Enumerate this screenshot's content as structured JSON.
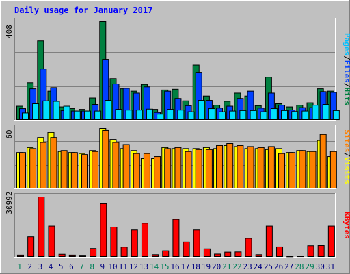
{
  "chart_data": {
    "type": "bar",
    "title": "Daily usage for January 2017",
    "categories": [
      "1",
      "2",
      "3",
      "4",
      "5",
      "6",
      "7",
      "8",
      "9",
      "10",
      "11",
      "12",
      "13",
      "14",
      "15",
      "16",
      "17",
      "18",
      "19",
      "20",
      "21",
      "22",
      "23",
      "24",
      "25",
      "26",
      "27",
      "28",
      "29",
      "30",
      "31"
    ],
    "weekend_days": [
      "1",
      "7",
      "8",
      "14",
      "15",
      "21",
      "22",
      "28",
      "29"
    ],
    "panels": [
      {
        "name": "hits_files_pages",
        "axis_max_label": "408",
        "ymax": 408,
        "series": [
          {
            "name": "Hits",
            "color": "#008040",
            "values": [
              58,
              155,
              328,
              120,
              55,
              48,
              45,
              92,
              408,
              172,
              130,
              120,
              148,
              45,
              125,
              128,
              80,
              228,
              100,
              62,
              78,
              112,
              100,
              60,
              178,
              68,
              55,
              62,
              72,
              130,
              120
            ]
          },
          {
            "name": "Files",
            "color": "#0040ff",
            "values": [
              48,
              130,
              212,
              135,
              40,
              38,
              38,
              65,
              252,
              150,
              132,
              112,
              138,
              32,
              120,
              90,
              60,
              198,
              82,
              50,
              58,
              90,
              120,
              50,
              112,
              62,
              42,
              52,
              52,
              118,
              115
            ]
          },
          {
            "name": "Pages",
            "color": "#00e0ff",
            "values": [
              30,
              68,
              80,
              78,
              58,
              38,
              38,
              38,
              82,
              45,
              42,
              42,
              46,
              25,
              45,
              42,
              35,
              82,
              48,
              35,
              38,
              40,
              40,
              35,
              48,
              40,
              36,
              38,
              62,
              65,
              40
            ]
          }
        ],
        "legend": [
          "Pages",
          "/",
          "Files",
          "/",
          "Hits"
        ],
        "legend_colors": [
          "#00c0ff",
          "#000000",
          "#0040ff",
          "#000000",
          "#008040"
        ]
      },
      {
        "name": "visits_sites",
        "axis_max_label": "60",
        "ymax": 60,
        "series": [
          {
            "name": "Visits",
            "color": "#ffff00",
            "values": [
              36,
              41,
              51,
              56,
              37,
              36,
              35,
              38,
              60,
              49,
              40,
              38,
              30,
              30,
              41,
              40,
              40,
              40,
              41,
              40,
              43,
              42,
              40,
              40,
              39,
              40,
              36,
              38,
              37,
              48,
              32
            ]
          },
          {
            "name": "Sites",
            "color": "#ff8000",
            "values": [
              36,
              40,
              46,
              51,
              38,
              36,
              34,
              37,
              58,
              46,
              44,
              35,
              35,
              32,
              40,
              41,
              37,
              39,
              39,
              43,
              45,
              43,
              42,
              41,
              42,
              35,
              36,
              38,
              37,
              54,
              37
            ]
          }
        ],
        "legend": [
          "Sites",
          "/",
          "Visits"
        ],
        "legend_colors": [
          "#ff8000",
          "#000000",
          "#ffff00"
        ]
      },
      {
        "name": "kbytes",
        "axis_max_label": "30992",
        "ymax": 30992,
        "series": [
          {
            "name": "KBytes",
            "color": "#ff0000",
            "values": [
              1100,
              10500,
              30992,
              16000,
              1500,
              1100,
              1000,
              4500,
              27500,
              15500,
              5200,
              14000,
              17500,
              1300,
              3300,
              19500,
              7800,
              14000,
              4300,
              1600,
              2600,
              2700,
              9700,
              1300,
              16000,
              5300,
              400,
              500,
              5900,
              6000,
              16000
            ]
          }
        ],
        "legend": [
          "KBytes"
        ],
        "legend_colors": [
          "#ff0000"
        ]
      }
    ]
  }
}
